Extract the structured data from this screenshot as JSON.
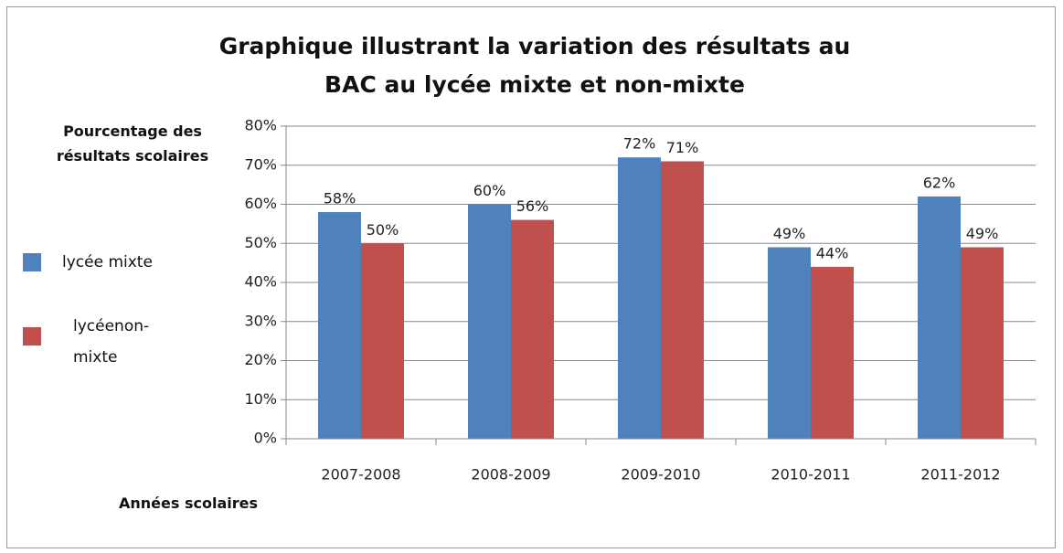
{
  "chart_data": {
    "type": "bar",
    "title": "Graphique illustrant la variation des résultats au BAC au lycée mixte et non-mixte",
    "y_label": "Pourcentage des résultats scolaires",
    "x_label": "Années scolaires",
    "categories": [
      "2007-2008",
      "2008-2009",
      "2009-2010",
      "2010-2011",
      "2011-2012"
    ],
    "series": [
      {
        "name": "lycée mixte",
        "color": "#4f81bd",
        "values": [
          58,
          60,
          72,
          49,
          62
        ],
        "value_labels": [
          "58%",
          "60%",
          "72%",
          "49%",
          "62%"
        ]
      },
      {
        "name": "lycéenon-mixte",
        "color": "#c0504d",
        "values": [
          50,
          56,
          71,
          44,
          49
        ],
        "value_labels": [
          "50%",
          "56%",
          "71%",
          "44%",
          "49%"
        ]
      }
    ],
    "ylim": [
      0,
      80
    ],
    "yticks": [
      {
        "value": 0,
        "label": "0%"
      },
      {
        "value": 10,
        "label": "10%"
      },
      {
        "value": 20,
        "label": "20%"
      },
      {
        "value": 30,
        "label": "30%"
      },
      {
        "value": 40,
        "label": "40%"
      },
      {
        "value": 50,
        "label": "50%"
      },
      {
        "value": 60,
        "label": "60%"
      },
      {
        "value": 70,
        "label": "70%"
      },
      {
        "value": 80,
        "label": "80%"
      }
    ],
    "grid": true,
    "legend": "left"
  }
}
